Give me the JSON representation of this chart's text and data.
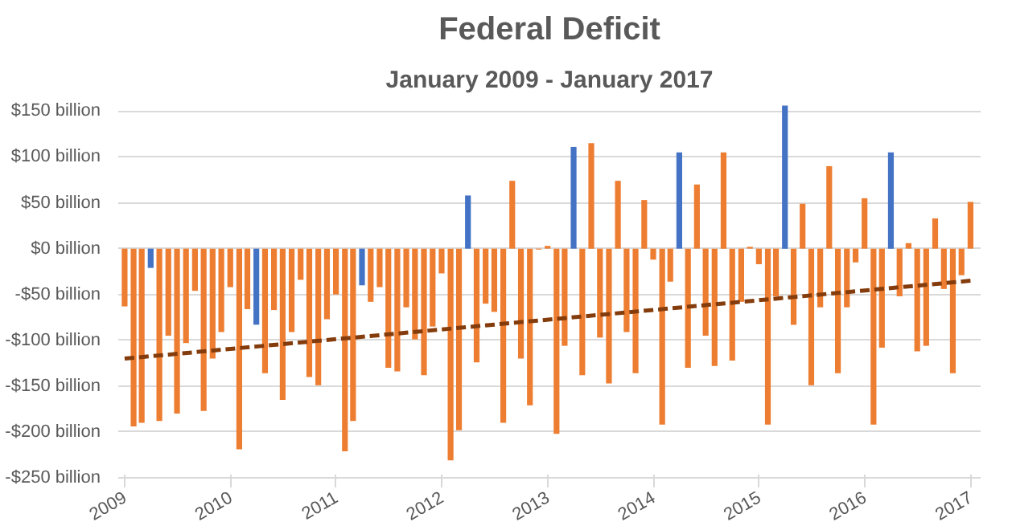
{
  "chart_data": {
    "type": "bar",
    "title": "Federal Deficit",
    "subtitle": "January 2009 - January 2017",
    "x": [
      "2009-01",
      "2009-02",
      "2009-03",
      "2009-04",
      "2009-05",
      "2009-06",
      "2009-07",
      "2009-08",
      "2009-09",
      "2009-10",
      "2009-11",
      "2009-12",
      "2010-01",
      "2010-02",
      "2010-03",
      "2010-04",
      "2010-05",
      "2010-06",
      "2010-07",
      "2010-08",
      "2010-09",
      "2010-10",
      "2010-11",
      "2010-12",
      "2011-01",
      "2011-02",
      "2011-03",
      "2011-04",
      "2011-05",
      "2011-06",
      "2011-07",
      "2011-08",
      "2011-09",
      "2011-10",
      "2011-11",
      "2011-12",
      "2012-01",
      "2012-02",
      "2012-03",
      "2012-04",
      "2012-05",
      "2012-06",
      "2012-07",
      "2012-08",
      "2012-09",
      "2012-10",
      "2012-11",
      "2012-12",
      "2013-01",
      "2013-02",
      "2013-03",
      "2013-04",
      "2013-05",
      "2013-06",
      "2013-07",
      "2013-08",
      "2013-09",
      "2013-10",
      "2013-11",
      "2013-12",
      "2014-01",
      "2014-02",
      "2014-03",
      "2014-04",
      "2014-05",
      "2014-06",
      "2014-07",
      "2014-08",
      "2014-09",
      "2014-10",
      "2014-11",
      "2014-12",
      "2015-01",
      "2015-02",
      "2015-03",
      "2015-04",
      "2015-05",
      "2015-06",
      "2015-07",
      "2015-08",
      "2015-09",
      "2015-10",
      "2015-11",
      "2015-12",
      "2016-01",
      "2016-02",
      "2016-03",
      "2016-04",
      "2016-05",
      "2016-06",
      "2016-07",
      "2016-08",
      "2016-09",
      "2016-10",
      "2016-11",
      "2016-12",
      "2017-01"
    ],
    "series": [
      {
        "values": [
          -63,
          -194,
          -190,
          -21,
          -188,
          -95,
          -180,
          -103,
          -46,
          -177,
          -120,
          -91,
          -42,
          -219,
          -66,
          -83,
          -136,
          -67,
          -165,
          -91,
          -34,
          -140,
          -149,
          -77,
          -50,
          -221,
          -188,
          -40,
          -58,
          -42,
          -130,
          -134,
          -64,
          -99,
          -138,
          -85,
          -27,
          -231,
          -198,
          58,
          -124,
          -60,
          -69,
          -190,
          74,
          -120,
          -171,
          -1,
          3,
          -202,
          -106,
          111,
          -138,
          115,
          -97,
          -147,
          74,
          -91,
          -136,
          53,
          -12,
          -192,
          -36,
          105,
          -130,
          70,
          -95,
          -128,
          105,
          -122,
          -58,
          2,
          -17,
          -192,
          -52,
          156,
          -83,
          49,
          -149,
          -64,
          90,
          -136,
          -64,
          -15,
          55,
          -192,
          -108,
          105,
          -52,
          6,
          -112,
          -106,
          33,
          -44,
          -136,
          -29,
          51
        ],
        "colors": [
          "#ed7d31",
          "#ed7d31",
          "#ed7d31",
          "#4472c4",
          "#ed7d31",
          "#ed7d31",
          "#ed7d31",
          "#ed7d31",
          "#ed7d31",
          "#ed7d31",
          "#ed7d31",
          "#ed7d31",
          "#ed7d31",
          "#ed7d31",
          "#ed7d31",
          "#4472c4",
          "#ed7d31",
          "#ed7d31",
          "#ed7d31",
          "#ed7d31",
          "#ed7d31",
          "#ed7d31",
          "#ed7d31",
          "#ed7d31",
          "#ed7d31",
          "#ed7d31",
          "#ed7d31",
          "#4472c4",
          "#ed7d31",
          "#ed7d31",
          "#ed7d31",
          "#ed7d31",
          "#ed7d31",
          "#ed7d31",
          "#ed7d31",
          "#ed7d31",
          "#ed7d31",
          "#ed7d31",
          "#ed7d31",
          "#4472c4",
          "#ed7d31",
          "#ed7d31",
          "#ed7d31",
          "#ed7d31",
          "#ed7d31",
          "#ed7d31",
          "#ed7d31",
          "#ed7d31",
          "#ed7d31",
          "#ed7d31",
          "#ed7d31",
          "#4472c4",
          "#ed7d31",
          "#ed7d31",
          "#ed7d31",
          "#ed7d31",
          "#ed7d31",
          "#ed7d31",
          "#ed7d31",
          "#ed7d31",
          "#ed7d31",
          "#ed7d31",
          "#ed7d31",
          "#4472c4",
          "#ed7d31",
          "#ed7d31",
          "#ed7d31",
          "#ed7d31",
          "#ed7d31",
          "#ed7d31",
          "#ed7d31",
          "#ed7d31",
          "#ed7d31",
          "#ed7d31",
          "#ed7d31",
          "#4472c4",
          "#ed7d31",
          "#ed7d31",
          "#ed7d31",
          "#ed7d31",
          "#ed7d31",
          "#ed7d31",
          "#ed7d31",
          "#ed7d31",
          "#ed7d31",
          "#ed7d31",
          "#ed7d31",
          "#4472c4",
          "#ed7d31",
          "#ed7d31",
          "#ed7d31",
          "#ed7d31",
          "#ed7d31",
          "#ed7d31",
          "#ed7d31",
          "#ed7d31",
          "#ed7d31"
        ]
      },
      {
        "type": "line",
        "x": [
          "2009-01",
          "2017-01"
        ],
        "values": [
          -120,
          -35
        ],
        "color": "#843c0c",
        "line_style": "dashed"
      }
    ],
    "xlim": [
      "2008-12-10",
      "2017-02-05"
    ],
    "xticks": [
      {
        "value": "2009-01",
        "label": "2009"
      },
      {
        "value": "2010-01",
        "label": "2010"
      },
      {
        "value": "2011-01",
        "label": "2011"
      },
      {
        "value": "2012-01",
        "label": "2012"
      },
      {
        "value": "2013-01",
        "label": "2013"
      },
      {
        "value": "2014-01",
        "label": "2014"
      },
      {
        "value": "2015-01",
        "label": "2015"
      },
      {
        "value": "2016-01",
        "label": "2016"
      },
      {
        "value": "2017-01",
        "label": "2017"
      }
    ],
    "ylim": [
      -250,
      160
    ],
    "yticks": [
      {
        "value": -250,
        "label": "-$250 billion"
      },
      {
        "value": -200,
        "label": "-$200 billion"
      },
      {
        "value": -150,
        "label": "-$150 billion"
      },
      {
        "value": -100,
        "label": "-$100 billion"
      },
      {
        "value": -50,
        "label": "-$50 billion"
      },
      {
        "value": 0,
        "label": "$0 billion"
      },
      {
        "value": 50,
        "label": "$50 billion"
      },
      {
        "value": 100,
        "label": "$100 billion"
      },
      {
        "value": 150,
        "label": "$150 billion"
      }
    ],
    "grid": "y"
  }
}
